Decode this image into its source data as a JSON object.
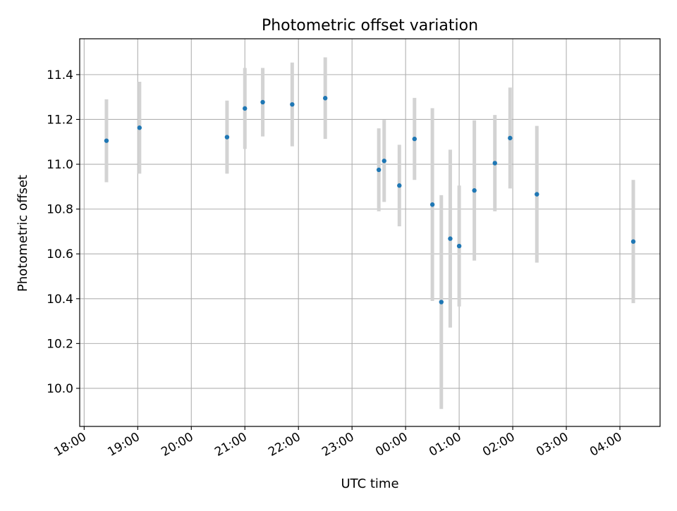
{
  "chart_data": {
    "type": "scatter",
    "title": "Photometric offset variation",
    "xlabel": "UTC time",
    "ylabel": "Photometric offset",
    "xlim": [
      "17:55",
      "04:45"
    ],
    "ylim": [
      9.83,
      11.56
    ],
    "xticks": [
      "18:00",
      "19:00",
      "20:00",
      "21:00",
      "22:00",
      "23:00",
      "00:00",
      "01:00",
      "02:00",
      "03:00",
      "04:00"
    ],
    "yticks": [
      "10.0",
      "10.2",
      "10.4",
      "10.6",
      "10.8",
      "11.0",
      "11.2",
      "11.4"
    ],
    "grid": true,
    "colors": {
      "marker": "#1f77b4",
      "errorbar": "#d3d3d3",
      "grid": "#b0b0b0"
    },
    "points": [
      {
        "x": "18:25",
        "y": 11.105,
        "yerr": 0.185
      },
      {
        "x": "19:02",
        "y": 11.163,
        "yerr": 0.205
      },
      {
        "x": "20:40",
        "y": 11.121,
        "yerr": 0.163
      },
      {
        "x": "21:00",
        "y": 11.249,
        "yerr": 0.181
      },
      {
        "x": "21:20",
        "y": 11.277,
        "yerr": 0.153
      },
      {
        "x": "21:53",
        "y": 11.267,
        "yerr": 0.187
      },
      {
        "x": "22:30",
        "y": 11.295,
        "yerr": 0.182
      },
      {
        "x": "23:30",
        "y": 10.975,
        "yerr": 0.185
      },
      {
        "x": "23:36",
        "y": 11.015,
        "yerr": 0.183
      },
      {
        "x": "23:53",
        "y": 10.905,
        "yerr": 0.182
      },
      {
        "x": "00:10",
        "y": 11.113,
        "yerr": 0.183
      },
      {
        "x": "00:30",
        "y": 10.82,
        "yerr": 0.43
      },
      {
        "x": "00:40",
        "y": 10.385,
        "yerr": 0.477
      },
      {
        "x": "00:50",
        "y": 10.668,
        "yerr": 0.397
      },
      {
        "x": "01:00",
        "y": 10.635,
        "yerr": 0.27
      },
      {
        "x": "01:17",
        "y": 10.883,
        "yerr": 0.313
      },
      {
        "x": "01:40",
        "y": 11.005,
        "yerr": 0.215
      },
      {
        "x": "01:57",
        "y": 11.117,
        "yerr": 0.225
      },
      {
        "x": "02:27",
        "y": 10.866,
        "yerr": 0.305
      },
      {
        "x": "04:15",
        "y": 10.655,
        "yerr": 0.275
      }
    ]
  }
}
